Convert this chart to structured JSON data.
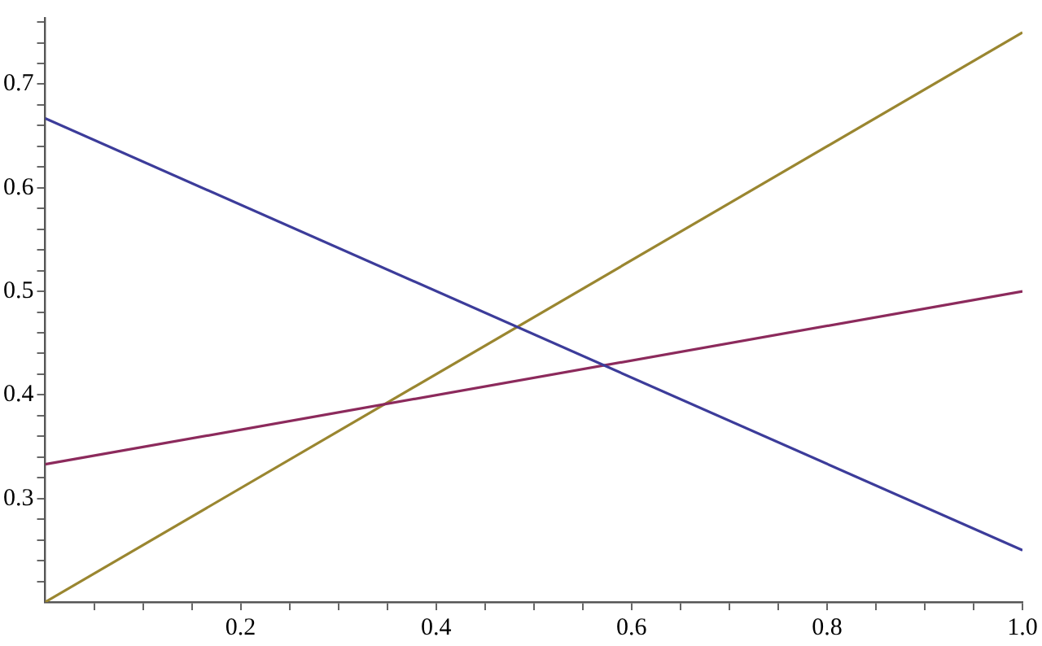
{
  "chart_data": {
    "type": "line",
    "x": [
      0,
      1
    ],
    "series": [
      {
        "color": "#3c3c9a",
        "values": [
          0.667,
          0.25
        ]
      },
      {
        "color": "#8c2a5c",
        "values": [
          0.333,
          0.5
        ]
      },
      {
        "color": "#9a8630",
        "values": [
          0.2,
          0.75
        ]
      }
    ],
    "xlim": [
      0,
      1
    ],
    "ylim": [
      0.2,
      0.764
    ],
    "xticks": [
      {
        "value": 0.05,
        "label": null
      },
      {
        "value": 0.1,
        "label": null
      },
      {
        "value": 0.15,
        "label": null
      },
      0.2,
      {
        "value": 0.25,
        "label": null
      },
      {
        "value": 0.3,
        "label": null
      },
      {
        "value": 0.35,
        "label": null
      },
      0.4,
      {
        "value": 0.45,
        "label": null
      },
      {
        "value": 0.5,
        "label": null
      },
      {
        "value": 0.55,
        "label": null
      },
      0.6,
      {
        "value": 0.65,
        "label": null
      },
      {
        "value": 0.7,
        "label": null
      },
      {
        "value": 0.75,
        "label": null
      },
      0.8,
      {
        "value": 0.85,
        "label": null
      },
      {
        "value": 0.9,
        "label": null
      },
      {
        "value": 0.95,
        "label": null
      },
      {
        "value": 1,
        "label": "1.0"
      }
    ],
    "yticks": [
      {
        "value": 0.22,
        "label": null
      },
      {
        "value": 0.24,
        "label": null
      },
      {
        "value": 0.26,
        "label": null
      },
      {
        "value": 0.28,
        "label": null
      },
      0.3,
      {
        "value": 0.32,
        "label": null
      },
      {
        "value": 0.34,
        "label": null
      },
      {
        "value": 0.36,
        "label": null
      },
      {
        "value": 0.38,
        "label": null
      },
      0.4,
      {
        "value": 0.42,
        "label": null
      },
      {
        "value": 0.44,
        "label": null
      },
      {
        "value": 0.46,
        "label": null
      },
      {
        "value": 0.48,
        "label": null
      },
      0.5,
      {
        "value": 0.52,
        "label": null
      },
      {
        "value": 0.54,
        "label": null
      },
      {
        "value": 0.56,
        "label": null
      },
      {
        "value": 0.58,
        "label": null
      },
      0.6,
      {
        "value": 0.62,
        "label": null
      },
      {
        "value": 0.64,
        "label": null
      },
      {
        "value": 0.66,
        "label": null
      },
      {
        "value": 0.68,
        "label": null
      },
      0.7,
      {
        "value": 0.72,
        "label": null
      },
      {
        "value": 0.74,
        "label": null
      },
      {
        "value": 0.76,
        "label": null
      }
    ],
    "grid": false
  }
}
